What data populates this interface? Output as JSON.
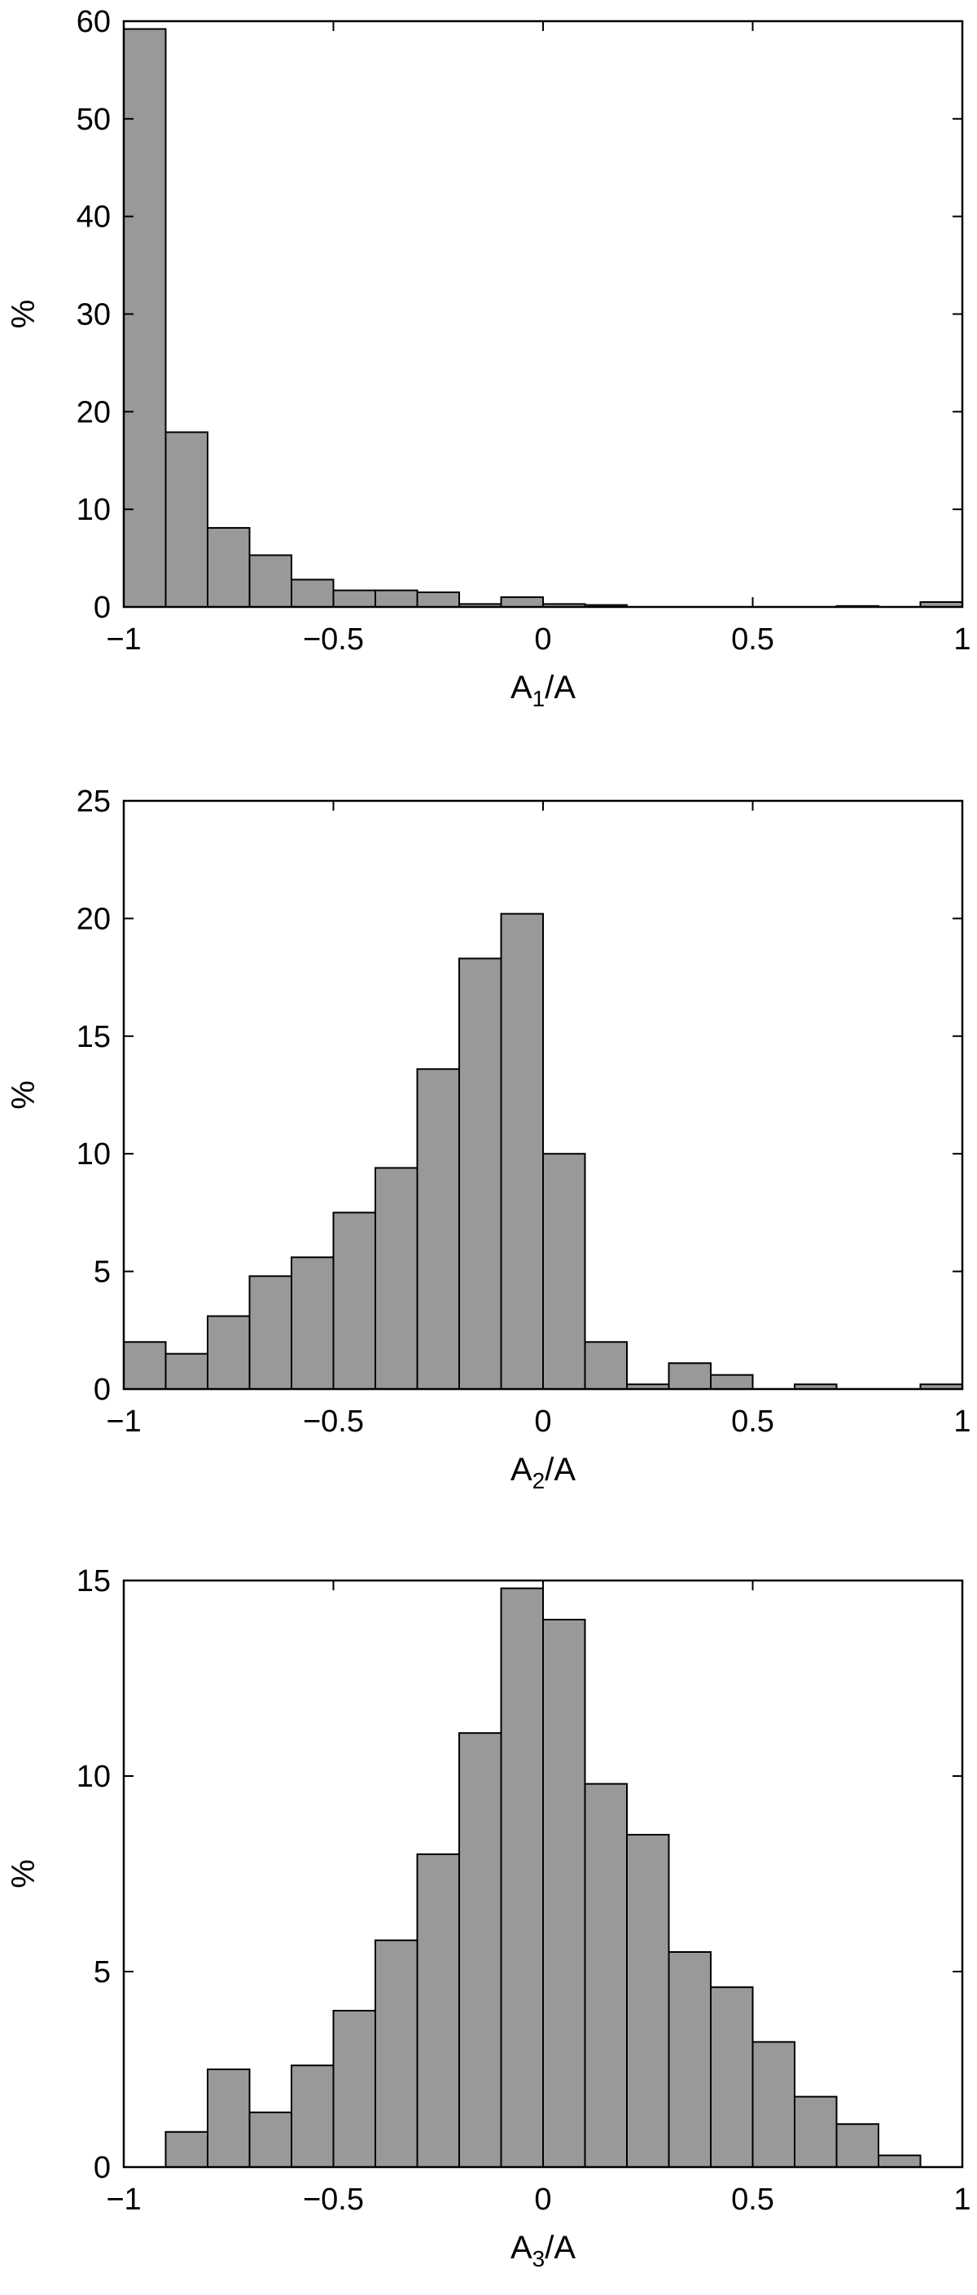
{
  "chart_data": [
    {
      "type": "bar",
      "histogram": true,
      "bin_width": 0.1,
      "bin_centers": [
        -0.95,
        -0.85,
        -0.75,
        -0.65,
        -0.55,
        -0.45,
        -0.35,
        -0.25,
        -0.15,
        -0.05,
        0.05,
        0.15,
        0.25,
        0.35,
        0.45,
        0.55,
        0.65,
        0.75,
        0.85,
        0.95
      ],
      "values": [
        59.2,
        17.9,
        8.1,
        5.3,
        2.8,
        1.7,
        1.7,
        1.5,
        0.3,
        1.0,
        0.3,
        0.2,
        0,
        0,
        0,
        0,
        0,
        0.1,
        0,
        0.5
      ],
      "xlim": [
        -1,
        1
      ],
      "ylim": [
        0,
        60
      ],
      "xticks": [
        -1,
        -0.5,
        0,
        0.5,
        1
      ],
      "xtick_labels": [
        "−1",
        "−0.5",
        "0",
        "0.5",
        "1"
      ],
      "yticks": [
        0,
        10,
        20,
        30,
        40,
        50,
        60
      ],
      "ytick_labels": [
        "0",
        "10",
        "20",
        "30",
        "40",
        "50",
        "60"
      ],
      "ylabel": "%",
      "xlabel": {
        "main": "A",
        "sub": "1",
        "rest": "/A"
      },
      "grid": false,
      "bar_color": "#999999"
    },
    {
      "type": "bar",
      "histogram": true,
      "bin_width": 0.1,
      "bin_centers": [
        -0.95,
        -0.85,
        -0.75,
        -0.65,
        -0.55,
        -0.45,
        -0.35,
        -0.25,
        -0.15,
        -0.05,
        0.05,
        0.15,
        0.25,
        0.35,
        0.45,
        0.55,
        0.65,
        0.75,
        0.85,
        0.95
      ],
      "values": [
        2.0,
        1.5,
        3.1,
        4.8,
        5.6,
        7.5,
        9.4,
        13.6,
        18.3,
        20.2,
        10.0,
        2.0,
        0.2,
        1.1,
        0.6,
        0,
        0.2,
        0,
        0,
        0.2
      ],
      "xlim": [
        -1,
        1
      ],
      "ylim": [
        0,
        25
      ],
      "xticks": [
        -1,
        -0.5,
        0,
        0.5,
        1
      ],
      "xtick_labels": [
        "−1",
        "−0.5",
        "0",
        "0.5",
        "1"
      ],
      "yticks": [
        0,
        5,
        10,
        15,
        20,
        25
      ],
      "ytick_labels": [
        "0",
        "5",
        "10",
        "15",
        "20",
        "25"
      ],
      "ylabel": "%",
      "xlabel": {
        "main": "A",
        "sub": "2",
        "rest": "/A"
      },
      "grid": false,
      "bar_color": "#999999"
    },
    {
      "type": "bar",
      "histogram": true,
      "bin_width": 0.1,
      "bin_centers": [
        -0.95,
        -0.85,
        -0.75,
        -0.65,
        -0.55,
        -0.45,
        -0.35,
        -0.25,
        -0.15,
        -0.05,
        0.05,
        0.15,
        0.25,
        0.35,
        0.45,
        0.55,
        0.65,
        0.75,
        0.85,
        0.95
      ],
      "values": [
        0,
        0.9,
        2.5,
        1.4,
        2.6,
        4.0,
        5.8,
        8.0,
        11.1,
        14.8,
        14.0,
        9.8,
        8.5,
        5.5,
        4.6,
        3.2,
        1.8,
        1.1,
        0.3,
        0
      ],
      "xlim": [
        -1,
        1
      ],
      "ylim": [
        0,
        15
      ],
      "xticks": [
        -1,
        -0.5,
        0,
        0.5,
        1
      ],
      "xtick_labels": [
        "−1",
        "−0.5",
        "0",
        "0.5",
        "1"
      ],
      "yticks": [
        0,
        5,
        10,
        15
      ],
      "ytick_labels": [
        "0",
        "5",
        "10",
        "15"
      ],
      "ylabel": "%",
      "xlabel": {
        "main": "A",
        "sub": "3",
        "rest": "/A"
      },
      "grid": false,
      "bar_color": "#999999"
    }
  ]
}
